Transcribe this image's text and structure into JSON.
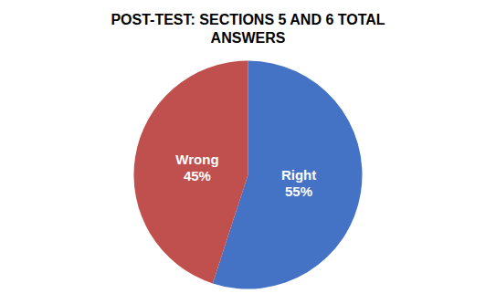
{
  "chart_data": {
    "type": "pie",
    "title": "POST-TEST: SECTIONS 5 AND 6 TOTAL\nANSWERS",
    "categories": [
      "Right",
      "Wrong"
    ],
    "values": [
      55,
      45
    ],
    "value_labels": [
      "55%",
      "45%"
    ],
    "colors": [
      "#4472C4",
      "#C0504D"
    ],
    "data_labels": true
  }
}
